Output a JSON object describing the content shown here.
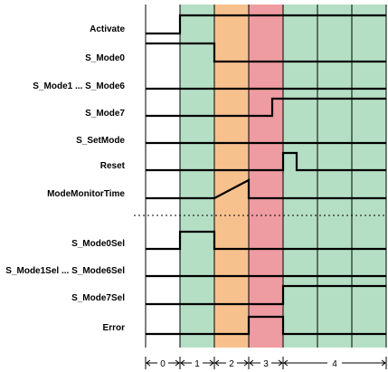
{
  "colors": {
    "phase_1": "#b5dfc5",
    "phase_2": "#f7c18e",
    "phase_3": "#ee9ba1",
    "phase_4": "#b5dfc5",
    "line": "#000000"
  },
  "signals": [
    {
      "label": "Activate"
    },
    {
      "label": "S_Mode0"
    },
    {
      "label": "S_Mode1 ... S_Mode6"
    },
    {
      "label": "S_Mode7"
    },
    {
      "label": "S_SetMode"
    },
    {
      "label": "Reset"
    },
    {
      "label": "ModeMonitorTime"
    },
    {
      "label": "S_Mode0Sel"
    },
    {
      "label": "S_Mode1Sel ... S_Mode6Sel"
    },
    {
      "label": "S_Mode7Sel"
    },
    {
      "label": "Error"
    }
  ],
  "phases": [
    {
      "label": "0"
    },
    {
      "label": "1"
    },
    {
      "label": "2"
    },
    {
      "label": "3"
    },
    {
      "label": "4"
    }
  ]
}
